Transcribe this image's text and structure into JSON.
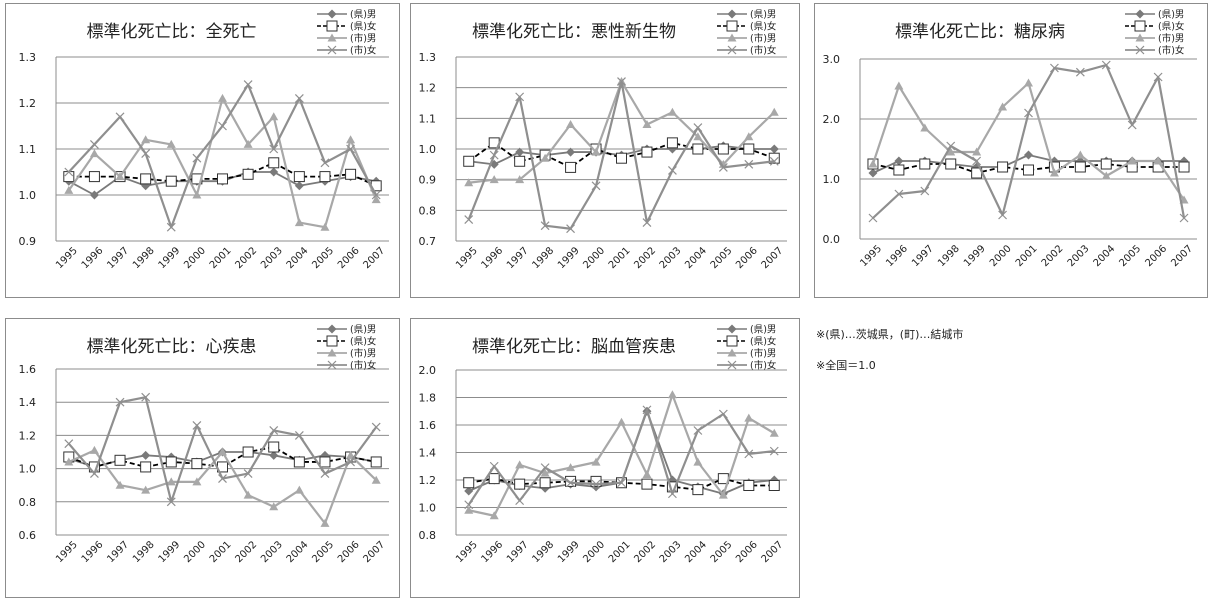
{
  "chart_data": [
    {
      "type": "line",
      "title": "標準化死亡比：全死亡",
      "x": [
        "1995",
        "1996",
        "1997",
        "1998",
        "1999",
        "2000",
        "2001",
        "2002",
        "2003",
        "2004",
        "2005",
        "2006",
        "2007"
      ],
      "yticks": [
        "1.3",
        "1.2",
        "1.1",
        "1.0",
        "0.9"
      ],
      "ylim": [
        0.9,
        1.3
      ],
      "legend_position": "top-right",
      "series": [
        {
          "name": "(県)男",
          "values": [
            1.03,
            1.0,
            1.04,
            1.02,
            1.03,
            1.03,
            1.03,
            1.05,
            1.05,
            1.02,
            1.03,
            1.04,
            1.03
          ]
        },
        {
          "name": "(県)女",
          "values": [
            1.04,
            1.04,
            1.04,
            1.035,
            1.03,
            1.035,
            1.035,
            1.045,
            1.07,
            1.04,
            1.04,
            1.045,
            1.02
          ]
        },
        {
          "name": "(市)男",
          "values": [
            1.01,
            1.09,
            1.04,
            1.12,
            1.11,
            1.0,
            1.21,
            1.11,
            1.17,
            0.94,
            0.93,
            1.12,
            0.99
          ]
        },
        {
          "name": "(市)女",
          "values": [
            1.05,
            1.11,
            1.17,
            1.09,
            0.93,
            1.08,
            1.15,
            1.24,
            1.1,
            1.21,
            1.07,
            1.1,
            1.0
          ]
        }
      ]
    },
    {
      "type": "line",
      "title": "標準化死亡比：悪性新生物",
      "x": [
        "1995",
        "1996",
        "1997",
        "1998",
        "1999",
        "2000",
        "2001",
        "2002",
        "2003",
        "2004",
        "2005",
        "2006",
        "2007"
      ],
      "yticks": [
        "1.3",
        "1.2",
        "1.1",
        "1.0",
        "0.9",
        "0.8",
        "0.7"
      ],
      "ylim": [
        0.7,
        1.3
      ],
      "legend_position": "top-right",
      "series": [
        {
          "name": "(県)男",
          "values": [
            0.96,
            0.95,
            0.99,
            0.98,
            0.99,
            0.99,
            0.98,
            1.0,
            1.0,
            1.0,
            1.01,
            1.0,
            1.0
          ]
        },
        {
          "name": "(県)女",
          "values": [
            0.96,
            1.02,
            0.96,
            0.98,
            0.94,
            1.0,
            0.97,
            0.99,
            1.02,
            1.0,
            1.0,
            1.0,
            0.97
          ]
        },
        {
          "name": "(市)男",
          "values": [
            0.89,
            0.9,
            0.9,
            0.97,
            1.08,
            0.99,
            1.22,
            1.08,
            1.12,
            1.04,
            0.95,
            1.04,
            1.12
          ]
        },
        {
          "name": "(市)女",
          "values": [
            0.77,
            0.98,
            1.17,
            0.75,
            0.74,
            0.88,
            1.22,
            0.76,
            0.93,
            1.07,
            0.94,
            0.95,
            0.96
          ]
        }
      ]
    },
    {
      "type": "line",
      "title": "標準化死亡比：糖尿病",
      "x": [
        "1995",
        "1996",
        "1997",
        "1998",
        "1999",
        "2000",
        "2001",
        "2002",
        "2003",
        "2004",
        "2005",
        "2006",
        "2007"
      ],
      "yticks": [
        "3.0",
        "2.0",
        "1.0",
        "0.0"
      ],
      "ylim": [
        0.0,
        3.0
      ],
      "legend_position": "top-right",
      "series": [
        {
          "name": "(県)男",
          "values": [
            1.1,
            1.3,
            1.3,
            1.25,
            1.2,
            1.2,
            1.4,
            1.3,
            1.3,
            1.3,
            1.3,
            1.3,
            1.3
          ]
        },
        {
          "name": "(県)女",
          "values": [
            1.25,
            1.15,
            1.25,
            1.25,
            1.1,
            1.2,
            1.15,
            1.2,
            1.2,
            1.25,
            1.2,
            1.2,
            1.2
          ]
        },
        {
          "name": "(市)男",
          "values": [
            1.25,
            2.55,
            1.85,
            1.45,
            1.45,
            2.2,
            2.6,
            1.1,
            1.4,
            1.05,
            1.3,
            1.3,
            0.65
          ]
        },
        {
          "name": "(市)女",
          "values": [
            0.35,
            0.75,
            0.8,
            1.55,
            1.3,
            0.4,
            2.1,
            2.85,
            2.78,
            2.9,
            1.9,
            2.7,
            0.35
          ]
        }
      ]
    },
    {
      "type": "line",
      "title": "標準化死亡比：心疾患",
      "x": [
        "1995",
        "1996",
        "1997",
        "1998",
        "1999",
        "2000",
        "2001",
        "2002",
        "2003",
        "2004",
        "2005",
        "2006",
        "2007"
      ],
      "yticks": [
        "1.6",
        "1.4",
        "1.2",
        "1.0",
        "0.8",
        "0.6"
      ],
      "ylim": [
        0.6,
        1.6
      ],
      "legend_position": "top-right",
      "series": [
        {
          "name": "(県)男",
          "values": [
            1.06,
            1.01,
            1.05,
            1.08,
            1.07,
            1.04,
            1.1,
            1.1,
            1.08,
            1.05,
            1.08,
            1.07,
            1.04
          ]
        },
        {
          "name": "(県)女",
          "values": [
            1.07,
            1.01,
            1.05,
            1.01,
            1.04,
            1.03,
            1.01,
            1.1,
            1.13,
            1.04,
            1.04,
            1.07,
            1.04
          ]
        },
        {
          "name": "(市)男",
          "values": [
            1.04,
            1.11,
            0.9,
            0.87,
            0.92,
            0.92,
            1.1,
            0.84,
            0.77,
            0.87,
            0.67,
            1.08,
            0.93
          ]
        },
        {
          "name": "(市)女",
          "values": [
            1.15,
            0.97,
            1.4,
            1.43,
            0.8,
            1.26,
            0.94,
            0.97,
            1.23,
            1.2,
            0.97,
            1.04,
            1.25
          ]
        }
      ]
    },
    {
      "type": "line",
      "title": "標準化死亡比：脳血管疾患",
      "x": [
        "1995",
        "1996",
        "1997",
        "1998",
        "1999",
        "2000",
        "2001",
        "2002",
        "2003",
        "2004",
        "2005",
        "2006",
        "2007"
      ],
      "yticks": [
        "2.0",
        "1.8",
        "1.6",
        "1.4",
        "1.2",
        "1.0",
        "0.8"
      ],
      "ylim": [
        0.8,
        2.0
      ],
      "legend_position": "top-right",
      "series": [
        {
          "name": "(県)男",
          "values": [
            1.12,
            1.2,
            1.16,
            1.14,
            1.17,
            1.15,
            1.18,
            1.7,
            1.2,
            1.15,
            1.1,
            1.18,
            1.2
          ]
        },
        {
          "name": "(県)女",
          "values": [
            1.18,
            1.21,
            1.17,
            1.18,
            1.19,
            1.19,
            1.18,
            1.17,
            1.15,
            1.13,
            1.21,
            1.16,
            1.16
          ]
        },
        {
          "name": "(市)男",
          "values": [
            0.98,
            0.94,
            1.31,
            1.25,
            1.29,
            1.33,
            1.62,
            1.24,
            1.82,
            1.33,
            1.09,
            1.65,
            1.54
          ]
        },
        {
          "name": "(市)女",
          "values": [
            1.02,
            1.3,
            1.05,
            1.29,
            1.18,
            1.17,
            1.18,
            1.71,
            1.1,
            1.56,
            1.68,
            1.39,
            1.41
          ]
        }
      ]
    }
  ],
  "series_colors": [
    "#7a7a7a",
    "#000000",
    "#a8a8a8",
    "#8f8f8f"
  ],
  "notes": {
    "line1": "※(県)…茨城県，(町)…結城市",
    "line2": "※全国＝1.0"
  }
}
